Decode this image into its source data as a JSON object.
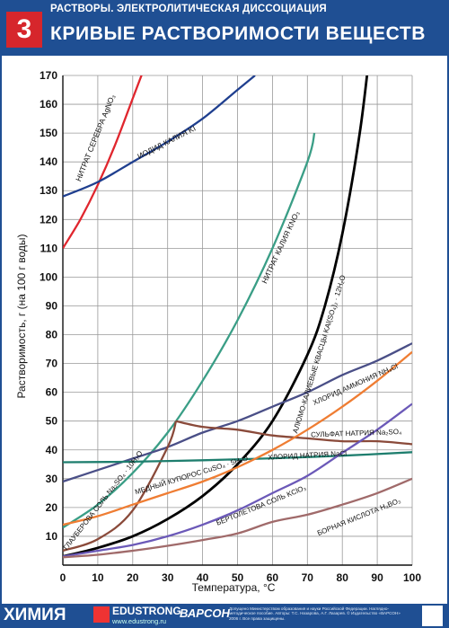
{
  "header": {
    "number": "3",
    "topic": "РАСТВОРЫ. ЭЛЕКТРОЛИТИЧЕСКАЯ ДИССОЦИАЦИЯ",
    "title": "КРИВЫЕ РАСТВОРИМОСТИ ВЕЩЕСТВ"
  },
  "footer": {
    "subject": "ХИМИЯ",
    "brand": "EDUSTRONG",
    "brand_url": "www.edustrong.ru",
    "logo2": "ВАРСОН",
    "fineprint": "Допущено Министерством образования и науки Российской Федерации. Наглядно-методическое пособие. Авторы: Т.С. Назарова, А.Г. Лазарев. © Издательство «ВАРСОН» 2006 г. Все права защищены."
  },
  "chart_data": {
    "type": "line",
    "xlabel": "Температура, °С",
    "ylabel": "Растворимость, г (на 100 г воды)",
    "xlim": [
      0,
      100
    ],
    "ylim": [
      0,
      170
    ],
    "xticks": [
      0,
      10,
      20,
      30,
      40,
      50,
      60,
      70,
      80,
      90,
      100
    ],
    "yticks": [
      10,
      20,
      30,
      40,
      50,
      60,
      70,
      80,
      90,
      100,
      110,
      120,
      130,
      140,
      150,
      160,
      170
    ],
    "grid": true,
    "series": [
      {
        "name": "НИТРАТ СЕРЕБРА AgNO₃",
        "color": "#e0262e",
        "x": [
          0,
          5,
          10,
          15,
          20,
          25
        ],
        "y": [
          110,
          120,
          132,
          146,
          162,
          178
        ]
      },
      {
        "name": "ИОДИД КАЛИЯ KI",
        "color": "#1f3f8f",
        "x": [
          0,
          10,
          20,
          30,
          40,
          50,
          55
        ],
        "y": [
          128,
          133,
          140,
          147,
          155,
          165,
          170
        ]
      },
      {
        "name": "НИТРАТ КАЛИЯ KNO₃",
        "color": "#3a9e86",
        "x": [
          0,
          10,
          20,
          30,
          40,
          50,
          60,
          70,
          72
        ],
        "y": [
          13,
          21,
          32,
          46,
          64,
          85,
          110,
          140,
          150
        ]
      },
      {
        "name": "АЛЮМО-КАЛИЕВЫЕ КВАСЦЫ KAl(SO₄)₂ · 12H₂O",
        "color": "#000000",
        "x": [
          0,
          10,
          20,
          30,
          40,
          50,
          60,
          70,
          75,
          80,
          85,
          88
        ],
        "y": [
          3,
          6,
          10,
          16,
          24,
          35,
          50,
          73,
          90,
          115,
          150,
          180
        ]
      },
      {
        "name": "ХЛОРИД АММОНИЯ NH₄Cl",
        "color": "#4a4f87",
        "x": [
          0,
          10,
          20,
          30,
          40,
          50,
          60,
          70,
          80,
          90,
          100
        ],
        "y": [
          29,
          33,
          37,
          41,
          46,
          50,
          55,
          60,
          66,
          71,
          77
        ]
      },
      {
        "name": "СУЛЬФАТ НАТРИЯ Na₂SO₄",
        "color": "#8a4a3a",
        "x": [
          0,
          10,
          20,
          30,
          32.4,
          40,
          50,
          60,
          70,
          80,
          90,
          100
        ],
        "y": [
          5,
          9,
          19,
          41,
          50,
          48,
          47,
          45,
          44,
          43,
          43,
          42
        ]
      },
      {
        "name": "ХЛОРИД НАТРИЯ NaCl",
        "color": "#1e7e6e",
        "x": [
          0,
          20,
          40,
          60,
          80,
          100
        ],
        "y": [
          35.7,
          35.9,
          36.4,
          37.1,
          38,
          39.2
        ]
      },
      {
        "name": "МЕДНЫЙ КУПОРОС CuSO₄ · 5H₂O",
        "color": "#ef7d33",
        "x": [
          0,
          10,
          20,
          30,
          40,
          50,
          60,
          70,
          80,
          90,
          100
        ],
        "y": [
          14,
          17,
          21,
          25,
          29,
          34,
          40,
          47,
          55,
          64,
          74
        ]
      },
      {
        "name": "БЕРТОЛЕТОВА СОЛЬ KClO₃",
        "color": "#6b59b8",
        "x": [
          0,
          10,
          20,
          30,
          40,
          50,
          60,
          70,
          80,
          90,
          100
        ],
        "y": [
          3,
          5,
          7,
          10,
          14,
          19,
          25,
          31,
          39,
          47,
          56
        ]
      },
      {
        "name": "БОРНАЯ КИСЛОТА H₃BO₃",
        "color": "#a06a6a",
        "x": [
          0,
          10,
          20,
          30,
          40,
          50,
          60,
          70,
          80,
          90,
          100
        ],
        "y": [
          2.7,
          3.6,
          5,
          6.7,
          8.7,
          11,
          15,
          17.5,
          21,
          25,
          30
        ]
      }
    ],
    "annotations": [
      "НИТРАТ СЕРЕБРА AgNO₃",
      "ИОДИД КАЛИЯ KI",
      "НИТРАТ КАЛИЯ KNO₃",
      "АЛЮМО-КАЛИЕВЫЕ КВАСЦЫ KAl(SO₄)₂ · 12H₂O",
      "ХЛОРИД АММОНИЯ NH₄Cl",
      "СУЛЬФАТ НАТРИЯ Na₂SO₄",
      "ХЛОРИД НАТРИЯ NaCl",
      "МЕДНЫЙ КУПОРОС CuSO₄ · 5H₂O",
      "ГЛАУБЕРОВА СОЛЬ Na₂SO₄ · 10H₂O",
      "БЕРТОЛЕТОВА СОЛЬ KClO₃",
      "БОРНАЯ КИСЛОТА H₃BO₃"
    ]
  }
}
